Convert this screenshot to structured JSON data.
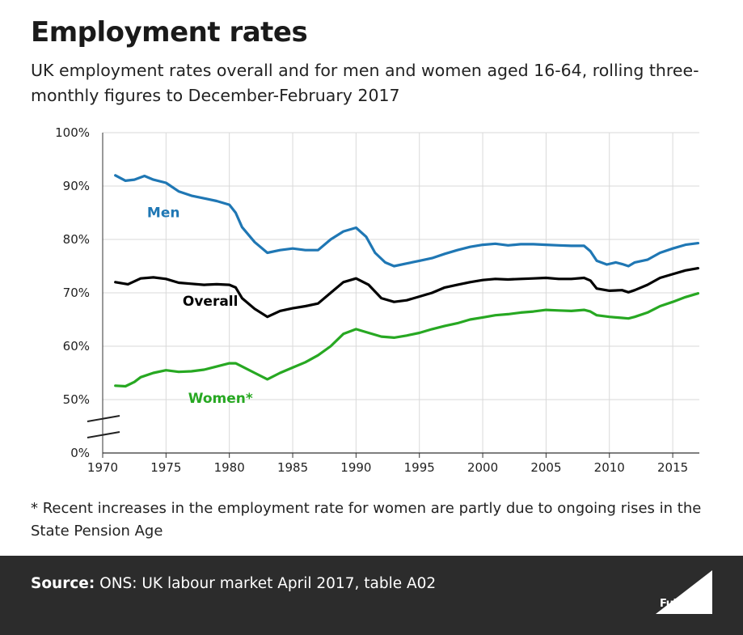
{
  "header": {
    "title": "Employment rates",
    "subtitle": "UK employment rates overall and for men and women aged 16-64, rolling three-monthly figures to December-February 2017"
  },
  "chart_data": {
    "type": "line",
    "title": "Employment rates",
    "xlabel": "",
    "ylabel": "",
    "xlim": [
      1971,
      2017.1
    ],
    "ylim": [
      50,
      100
    ],
    "axis_break": true,
    "x_ticks": [
      1970,
      1975,
      1980,
      1985,
      1990,
      1995,
      2000,
      2005,
      2010,
      2015
    ],
    "y_ticks": [
      {
        "value": 100,
        "label": "100%"
      },
      {
        "value": 90,
        "label": "90%"
      },
      {
        "value": 80,
        "label": "80%"
      },
      {
        "value": 70,
        "label": "70%"
      },
      {
        "value": 60,
        "label": "60%"
      },
      {
        "value": 50,
        "label": "50%"
      },
      {
        "value": 0,
        "label": "0%"
      }
    ],
    "grid": true,
    "series": [
      {
        "name": "Men",
        "label": "Men",
        "color": "#1f77b4",
        "points": [
          [
            1971,
            92
          ],
          [
            1971.8,
            91
          ],
          [
            1972.5,
            91.2
          ],
          [
            1973.3,
            91.9
          ],
          [
            1974,
            91.2
          ],
          [
            1975,
            90.6
          ],
          [
            1976,
            89
          ],
          [
            1977,
            88.2
          ],
          [
            1978,
            87.7
          ],
          [
            1979,
            87.2
          ],
          [
            1980,
            86.5
          ],
          [
            1980.5,
            85
          ],
          [
            1981,
            82.3
          ],
          [
            1982,
            79.5
          ],
          [
            1983,
            77.5
          ],
          [
            1984,
            78
          ],
          [
            1985,
            78.3
          ],
          [
            1986,
            78
          ],
          [
            1987,
            78
          ],
          [
            1988,
            80
          ],
          [
            1989,
            81.5
          ],
          [
            1990,
            82.2
          ],
          [
            1990.8,
            80.5
          ],
          [
            1991.5,
            77.5
          ],
          [
            1992.3,
            75.7
          ],
          [
            1993,
            75
          ],
          [
            1994,
            75.5
          ],
          [
            1995,
            76
          ],
          [
            1996,
            76.5
          ],
          [
            1997,
            77.3
          ],
          [
            1998,
            78
          ],
          [
            1999,
            78.6
          ],
          [
            2000,
            79
          ],
          [
            2001,
            79.2
          ],
          [
            2002,
            78.9
          ],
          [
            2003,
            79.1
          ],
          [
            2004,
            79.1
          ],
          [
            2005,
            79
          ],
          [
            2006,
            78.9
          ],
          [
            2007,
            78.8
          ],
          [
            2008,
            78.8
          ],
          [
            2008.5,
            77.8
          ],
          [
            2009,
            76
          ],
          [
            2009.8,
            75.3
          ],
          [
            2010.5,
            75.7
          ],
          [
            2011,
            75.4
          ],
          [
            2011.5,
            75
          ],
          [
            2012,
            75.7
          ],
          [
            2013,
            76.2
          ],
          [
            2014,
            77.5
          ],
          [
            2015,
            78.3
          ],
          [
            2016,
            79
          ],
          [
            2017,
            79.3
          ]
        ]
      },
      {
        "name": "Overall",
        "label": "Overall",
        "color": "#000000",
        "points": [
          [
            1971,
            72
          ],
          [
            1972,
            71.6
          ],
          [
            1973,
            72.7
          ],
          [
            1974,
            72.9
          ],
          [
            1975,
            72.6
          ],
          [
            1976,
            71.9
          ],
          [
            1977,
            71.7
          ],
          [
            1978,
            71.5
          ],
          [
            1979,
            71.6
          ],
          [
            1980,
            71.5
          ],
          [
            1980.5,
            71
          ],
          [
            1981,
            69
          ],
          [
            1982,
            67
          ],
          [
            1983,
            65.5
          ],
          [
            1984,
            66.6
          ],
          [
            1985,
            67.1
          ],
          [
            1986,
            67.5
          ],
          [
            1987,
            68
          ],
          [
            1988,
            70
          ],
          [
            1989,
            72
          ],
          [
            1990,
            72.7
          ],
          [
            1991,
            71.5
          ],
          [
            1992,
            69
          ],
          [
            1993,
            68.3
          ],
          [
            1994,
            68.6
          ],
          [
            1995,
            69.3
          ],
          [
            1996,
            70
          ],
          [
            1997,
            71
          ],
          [
            1998,
            71.5
          ],
          [
            1999,
            72
          ],
          [
            2000,
            72.4
          ],
          [
            2001,
            72.6
          ],
          [
            2002,
            72.5
          ],
          [
            2003,
            72.6
          ],
          [
            2004,
            72.7
          ],
          [
            2005,
            72.8
          ],
          [
            2006,
            72.6
          ],
          [
            2007,
            72.6
          ],
          [
            2008,
            72.8
          ],
          [
            2008.5,
            72.3
          ],
          [
            2009,
            70.8
          ],
          [
            2010,
            70.4
          ],
          [
            2011,
            70.5
          ],
          [
            2011.5,
            70.1
          ],
          [
            2012,
            70.5
          ],
          [
            2013,
            71.5
          ],
          [
            2014,
            72.8
          ],
          [
            2015,
            73.5
          ],
          [
            2016,
            74.2
          ],
          [
            2017,
            74.6
          ]
        ]
      },
      {
        "name": "Women",
        "label": "Women*",
        "color": "#27a822",
        "points": [
          [
            1971,
            52.6
          ],
          [
            1971.8,
            52.5
          ],
          [
            1972.5,
            53.3
          ],
          [
            1973,
            54.2
          ],
          [
            1974,
            55
          ],
          [
            1975,
            55.5
          ],
          [
            1976,
            55.2
          ],
          [
            1977,
            55.3
          ],
          [
            1978,
            55.6
          ],
          [
            1979,
            56.2
          ],
          [
            1980,
            56.8
          ],
          [
            1980.5,
            56.8
          ],
          [
            1981,
            56.2
          ],
          [
            1982,
            55
          ],
          [
            1983,
            53.8
          ],
          [
            1984,
            55
          ],
          [
            1985,
            56
          ],
          [
            1986,
            57
          ],
          [
            1987,
            58.3
          ],
          [
            1988,
            60
          ],
          [
            1989,
            62.3
          ],
          [
            1990,
            63.2
          ],
          [
            1991,
            62.5
          ],
          [
            1992,
            61.8
          ],
          [
            1993,
            61.6
          ],
          [
            1994,
            62
          ],
          [
            1995,
            62.5
          ],
          [
            1996,
            63.2
          ],
          [
            1997,
            63.8
          ],
          [
            1998,
            64.3
          ],
          [
            1999,
            65
          ],
          [
            2000,
            65.4
          ],
          [
            2001,
            65.8
          ],
          [
            2002,
            66
          ],
          [
            2003,
            66.3
          ],
          [
            2004,
            66.5
          ],
          [
            2005,
            66.8
          ],
          [
            2006,
            66.7
          ],
          [
            2007,
            66.6
          ],
          [
            2008,
            66.8
          ],
          [
            2008.5,
            66.5
          ],
          [
            2009,
            65.8
          ],
          [
            2010,
            65.5
          ],
          [
            2011,
            65.3
          ],
          [
            2011.5,
            65.2
          ],
          [
            2012,
            65.5
          ],
          [
            2013,
            66.3
          ],
          [
            2014,
            67.5
          ],
          [
            2015,
            68.3
          ],
          [
            2016,
            69.2
          ],
          [
            2017,
            69.9
          ]
        ]
      }
    ]
  },
  "footnote": "* Recent increases in the employment rate for women are partly due to ongoing rises in the State Pension Age",
  "footer": {
    "source_label": "Source:",
    "source_text": " ONS: UK labour market April 2017, table A02",
    "logo_text": "Full Fact"
  },
  "colors": {
    "footer_bg": "#2c2c2c",
    "grid": "#d9d9d9",
    "axis": "#333333"
  }
}
